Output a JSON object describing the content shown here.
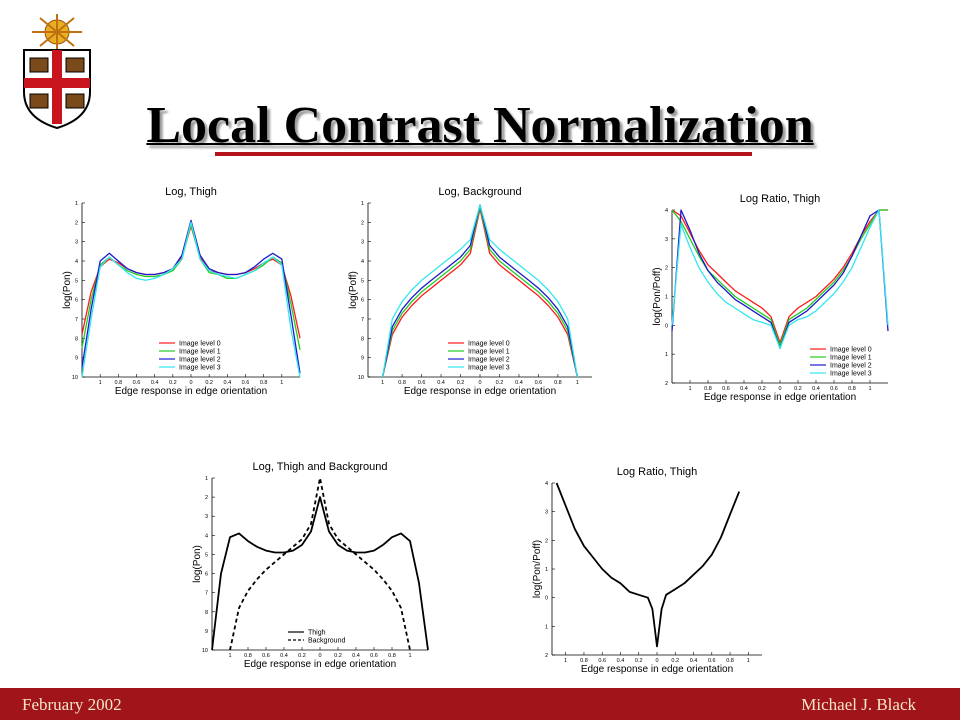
{
  "slide": {
    "title": "Local Contrast Normalization",
    "footer_left": "February 2002",
    "footer_right": "Michael J. Black"
  },
  "chart_data": [
    {
      "type": "line",
      "title": "Log, Thigh",
      "xlabel": "Edge response in edge orientation",
      "ylabel": "log(Pon)",
      "x": [
        -1.2,
        -1.1,
        -1,
        -0.9,
        -0.8,
        -0.7,
        -0.6,
        -0.5,
        -0.4,
        -0.3,
        -0.2,
        -0.1,
        0,
        0.1,
        0.2,
        0.3,
        0.4,
        0.5,
        0.6,
        0.7,
        0.8,
        0.9,
        1,
        1.1,
        1.2
      ],
      "xlim": [
        -1.2,
        1.2
      ],
      "xticks": [
        {
          "value": -1,
          "label": "1"
        },
        {
          "value": -0.8,
          "label": "0.8"
        },
        {
          "value": -0.6,
          "label": "0.6"
        },
        {
          "value": -0.4,
          "label": "0.4"
        },
        {
          "value": -0.2,
          "label": "0.2"
        },
        0,
        0.2,
        0.4,
        0.6,
        0.8,
        1
      ],
      "ylim": [
        -10,
        -1
      ],
      "yticks": [
        {
          "value": -1,
          "label": "1"
        },
        {
          "value": -2,
          "label": "2"
        },
        {
          "value": -3,
          "label": "3"
        },
        {
          "value": -4,
          "label": "4"
        },
        {
          "value": -5,
          "label": "5"
        },
        {
          "value": -6,
          "label": "6"
        },
        {
          "value": -7,
          "label": "7"
        },
        {
          "value": -8,
          "label": "8"
        },
        {
          "value": -9,
          "label": "9"
        },
        {
          "value": -10,
          "label": "10"
        }
      ],
      "legend": "lower center",
      "series": [
        {
          "name": "Image level 0",
          "color": "#ff1a1a",
          "values": [
            -7.8,
            -5.6,
            -4.3,
            -3.9,
            -4.1,
            -4.4,
            -4.6,
            -4.7,
            -4.7,
            -4.6,
            -4.4,
            -3.8,
            -2.2,
            -3.8,
            -4.5,
            -4.6,
            -4.7,
            -4.7,
            -4.6,
            -4.4,
            -4.1,
            -3.9,
            -4.2,
            -5.8,
            -8.0
          ]
        },
        {
          "name": "Image level 1",
          "color": "#22cc22",
          "values": [
            -8.5,
            -6.0,
            -4.2,
            -3.8,
            -4.2,
            -4.5,
            -4.7,
            -4.8,
            -4.8,
            -4.7,
            -4.5,
            -3.9,
            -2.1,
            -3.9,
            -4.6,
            -4.7,
            -4.9,
            -4.9,
            -4.7,
            -4.5,
            -4.2,
            -3.8,
            -4.1,
            -6.2,
            -8.6
          ]
        },
        {
          "name": "Image level 2",
          "color": "#1a1acc",
          "values": [
            -9.5,
            -6.5,
            -4.0,
            -3.6,
            -4.0,
            -4.4,
            -4.6,
            -4.7,
            -4.7,
            -4.6,
            -4.4,
            -3.7,
            -1.9,
            -3.7,
            -4.4,
            -4.6,
            -4.7,
            -4.7,
            -4.6,
            -4.3,
            -3.9,
            -3.6,
            -3.9,
            -6.8,
            -9.8
          ]
        },
        {
          "name": "Image level 3",
          "color": "#33e6f0",
          "values": [
            -10,
            -7.0,
            -4.3,
            -3.8,
            -4.2,
            -4.6,
            -4.9,
            -5.0,
            -4.9,
            -4.7,
            -4.4,
            -3.9,
            -2.0,
            -3.9,
            -4.5,
            -4.7,
            -4.8,
            -4.9,
            -4.7,
            -4.5,
            -4.1,
            -3.8,
            -4.2,
            -7.5,
            -10
          ]
        }
      ]
    },
    {
      "type": "line",
      "title": "Log, Background",
      "xlabel": "Edge response in edge orientation",
      "ylabel": "log(Poff)",
      "x": [
        -1,
        -0.9,
        -0.8,
        -0.7,
        -0.6,
        -0.5,
        -0.4,
        -0.3,
        -0.2,
        -0.1,
        0,
        0.1,
        0.2,
        0.3,
        0.4,
        0.5,
        0.6,
        0.7,
        0.8,
        0.9,
        1
      ],
      "xlim": [
        -1.15,
        1.15
      ],
      "xticks": [
        {
          "value": -1,
          "label": "1"
        },
        {
          "value": -0.8,
          "label": "0.8"
        },
        {
          "value": -0.6,
          "label": "0.6"
        },
        {
          "value": -0.4,
          "label": "0.4"
        },
        {
          "value": -0.2,
          "label": "0.2"
        },
        0,
        0.2,
        0.4,
        0.6,
        0.8,
        1
      ],
      "ylim": [
        -10,
        -1
      ],
      "yticks": [
        {
          "value": -1,
          "label": "1"
        },
        {
          "value": -2,
          "label": "2"
        },
        {
          "value": -3,
          "label": "3"
        },
        {
          "value": -4,
          "label": "4"
        },
        {
          "value": -5,
          "label": "5"
        },
        {
          "value": -6,
          "label": "6"
        },
        {
          "value": -7,
          "label": "7"
        },
        {
          "value": -8,
          "label": "8"
        },
        {
          "value": -9,
          "label": "9"
        },
        {
          "value": -10,
          "label": "10"
        }
      ],
      "legend": "lower center",
      "series": [
        {
          "name": "Image level 0",
          "color": "#ff1a1a",
          "values": [
            -10,
            -7.8,
            -6.9,
            -6.3,
            -5.8,
            -5.4,
            -5.0,
            -4.6,
            -4.2,
            -3.6,
            -1.3,
            -3.6,
            -4.2,
            -4.6,
            -5.0,
            -5.4,
            -5.8,
            -6.3,
            -6.9,
            -7.8,
            -10
          ]
        },
        {
          "name": "Image level 1",
          "color": "#22cc22",
          "values": [
            -10,
            -7.6,
            -6.7,
            -6.1,
            -5.6,
            -5.2,
            -4.8,
            -4.4,
            -4.0,
            -3.4,
            -1.2,
            -3.4,
            -4.0,
            -4.4,
            -4.8,
            -5.2,
            -5.6,
            -6.1,
            -6.7,
            -7.6,
            -10
          ]
        },
        {
          "name": "Image level 2",
          "color": "#1a1acc",
          "values": [
            -10,
            -7.4,
            -6.5,
            -5.9,
            -5.4,
            -5.0,
            -4.6,
            -4.2,
            -3.8,
            -3.2,
            -1.1,
            -3.2,
            -3.8,
            -4.2,
            -4.6,
            -5.0,
            -5.4,
            -5.9,
            -6.5,
            -7.4,
            -10
          ]
        },
        {
          "name": "Image level 3",
          "color": "#33e6f0",
          "values": [
            -10,
            -7.0,
            -6.1,
            -5.5,
            -5.0,
            -4.6,
            -4.2,
            -3.8,
            -3.4,
            -2.9,
            -1.1,
            -2.9,
            -3.4,
            -3.8,
            -4.2,
            -4.6,
            -5.0,
            -5.5,
            -6.1,
            -7.0,
            -10
          ]
        }
      ]
    },
    {
      "type": "line",
      "title": "Log Ratio, Thigh",
      "xlabel": "Edge response in edge orientation",
      "ylabel": "log(Pon/Poff)",
      "x": [
        -1.2,
        -1.1,
        -1,
        -0.9,
        -0.8,
        -0.7,
        -0.6,
        -0.5,
        -0.4,
        -0.3,
        -0.2,
        -0.1,
        0,
        0.1,
        0.2,
        0.3,
        0.4,
        0.5,
        0.6,
        0.7,
        0.8,
        0.9,
        1,
        1.1,
        1.2
      ],
      "xlim": [
        -1.2,
        1.2
      ],
      "xticks": [
        {
          "value": -1,
          "label": "1"
        },
        {
          "value": -0.8,
          "label": "0.8"
        },
        {
          "value": -0.6,
          "label": "0.6"
        },
        {
          "value": -0.4,
          "label": "0.4"
        },
        {
          "value": -0.2,
          "label": "0.2"
        },
        0,
        0.2,
        0.4,
        0.6,
        0.8,
        1
      ],
      "ylim": [
        -2,
        4
      ],
      "yticks": [
        4,
        3,
        2,
        1,
        0,
        {
          "value": -1,
          "label": "1"
        },
        {
          "value": -2,
          "label": "2"
        }
      ],
      "legend": "lower right",
      "series": [
        {
          "name": "Image level 0",
          "color": "#ff1a1a",
          "values": [
            4,
            3.8,
            3.2,
            2.6,
            2.1,
            1.8,
            1.5,
            1.2,
            1.0,
            0.8,
            0.6,
            0.3,
            -0.6,
            0.3,
            0.6,
            0.8,
            1.0,
            1.3,
            1.6,
            2.0,
            2.5,
            3.1,
            3.6,
            4,
            4
          ]
        },
        {
          "name": "Image level 1",
          "color": "#22cc22",
          "values": [
            4,
            3.6,
            3.0,
            2.4,
            1.9,
            1.6,
            1.3,
            1.0,
            0.8,
            0.6,
            0.4,
            0.2,
            -0.7,
            0.2,
            0.4,
            0.6,
            0.9,
            1.2,
            1.5,
            1.9,
            2.4,
            3.0,
            3.5,
            4,
            4
          ]
        },
        {
          "name": "Image level 2",
          "color": "#1a1acc",
          "values": [
            -0.2,
            4,
            3.3,
            2.5,
            1.9,
            1.5,
            1.2,
            0.9,
            0.7,
            0.5,
            0.3,
            0.1,
            -0.8,
            0.1,
            0.3,
            0.5,
            0.8,
            1.1,
            1.4,
            1.8,
            2.4,
            3.1,
            3.8,
            4,
            -0.2
          ]
        },
        {
          "name": "Image level 3",
          "color": "#33e6f0",
          "values": [
            0,
            3.5,
            2.7,
            2.0,
            1.5,
            1.1,
            0.8,
            0.6,
            0.4,
            0.2,
            0.1,
            0,
            -0.8,
            0,
            0.2,
            0.3,
            0.5,
            0.8,
            1.1,
            1.5,
            2.0,
            2.7,
            3.4,
            4,
            0
          ]
        }
      ]
    },
    {
      "type": "line",
      "title": "Log, Thigh and Background",
      "xlabel": "Edge response in edge orientation",
      "ylabel": "log(Pon)",
      "x": [
        -1.2,
        -1.1,
        -1,
        -0.9,
        -0.8,
        -0.7,
        -0.6,
        -0.5,
        -0.4,
        -0.3,
        -0.2,
        -0.1,
        0,
        0.1,
        0.2,
        0.3,
        0.4,
        0.5,
        0.6,
        0.7,
        0.8,
        0.9,
        1,
        1.1,
        1.2
      ],
      "xlim": [
        -1.2,
        1.2
      ],
      "xticks": [
        {
          "value": -1,
          "label": "1"
        },
        {
          "value": -0.8,
          "label": "0.8"
        },
        {
          "value": -0.6,
          "label": "0.6"
        },
        {
          "value": -0.4,
          "label": "0.4"
        },
        {
          "value": -0.2,
          "label": "0.2"
        },
        0,
        0.2,
        0.4,
        0.6,
        0.8,
        1
      ],
      "ylim": [
        -10,
        -1
      ],
      "yticks": [
        {
          "value": -1,
          "label": "1"
        },
        {
          "value": -2,
          "label": "2"
        },
        {
          "value": -3,
          "label": "3"
        },
        {
          "value": -4,
          "label": "4"
        },
        {
          "value": -5,
          "label": "5"
        },
        {
          "value": -6,
          "label": "6"
        },
        {
          "value": -7,
          "label": "7"
        },
        {
          "value": -8,
          "label": "8"
        },
        {
          "value": -9,
          "label": "9"
        },
        {
          "value": -10,
          "label": "10"
        }
      ],
      "legend": "lower center",
      "series": [
        {
          "name": "Thigh",
          "color": "#000000",
          "style": "solid",
          "values": [
            -10,
            -6,
            -4.1,
            -3.9,
            -4.3,
            -4.6,
            -4.8,
            -4.9,
            -4.9,
            -4.8,
            -4.5,
            -3.8,
            -2.0,
            -3.8,
            -4.5,
            -4.8,
            -4.9,
            -4.9,
            -4.8,
            -4.5,
            -4.1,
            -3.9,
            -4.3,
            -6.5,
            -10
          ]
        },
        {
          "name": "Background",
          "color": "#000000",
          "style": "dashed",
          "values": [
            null,
            null,
            -10,
            -7.8,
            -6.9,
            -6.3,
            -5.8,
            -5.4,
            -5.0,
            -4.6,
            -4.2,
            -3.4,
            -1.0,
            -3.4,
            -4.2,
            -4.6,
            -5.0,
            -5.4,
            -5.8,
            -6.3,
            -6.9,
            -7.8,
            -10,
            null,
            null
          ]
        }
      ]
    },
    {
      "type": "line",
      "title": "Log Ratio, Thigh",
      "xlabel": "Edge response in edge orientation",
      "ylabel": "log(Pon/Poff)",
      "x": [
        -1.1,
        -1,
        -0.9,
        -0.8,
        -0.7,
        -0.6,
        -0.5,
        -0.4,
        -0.3,
        -0.2,
        -0.1,
        -0.05,
        0,
        0.05,
        0.1,
        0.2,
        0.3,
        0.4,
        0.5,
        0.6,
        0.7,
        0.8,
        0.9
      ],
      "xlim": [
        -1.15,
        1.15
      ],
      "xticks": [
        {
          "value": -1,
          "label": "1"
        },
        {
          "value": -0.8,
          "label": "0.8"
        },
        {
          "value": -0.6,
          "label": "0.6"
        },
        {
          "value": -0.4,
          "label": "0.4"
        },
        {
          "value": -0.2,
          "label": "0.2"
        },
        0,
        0.2,
        0.4,
        0.6,
        0.8,
        1
      ],
      "ylim": [
        -2,
        4
      ],
      "yticks": [
        4,
        3,
        2,
        1,
        0,
        {
          "value": -1,
          "label": "1"
        },
        {
          "value": -2,
          "label": "2"
        }
      ],
      "series": [
        {
          "color": "#000000",
          "values": [
            4,
            3.2,
            2.4,
            1.8,
            1.4,
            1.0,
            0.7,
            0.5,
            0.2,
            0.1,
            0,
            -0.4,
            -1.7,
            -0.4,
            0.1,
            0.3,
            0.5,
            0.8,
            1.1,
            1.5,
            2.1,
            2.9,
            3.7
          ]
        }
      ]
    }
  ]
}
